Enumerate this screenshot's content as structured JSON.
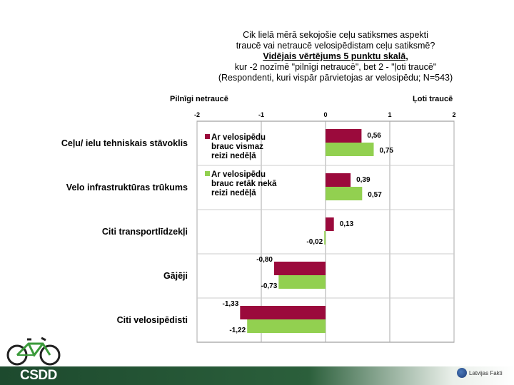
{
  "title": {
    "line1": "Cik lielā mērā sekojošie ceļu satiksmes aspekti",
    "line2": "traucē vai netraucē velosipēdistam ceļu satiksmē?",
    "line3": "Vidējais vērtējums 5 punktu skalā,",
    "line4": "kur -2 nozīmē \"pilnīgi netraucē\", bet 2 - \"ļoti traucē\"",
    "line5": "(Respondenti, kuri vispār pārvietojas ar velosipēdu; N=543)"
  },
  "scale": {
    "left_label": "Pilnīgi netraucē",
    "right_label": "Ļoti traucē"
  },
  "chart_data": {
    "type": "bar",
    "orientation": "horizontal",
    "categories": [
      "Ceļu/ ielu tehniskais stāvoklis",
      "Velo infrastruktūras trūkums",
      "Citi transportlīdzekļi",
      "Gājēji",
      "Citi velosipēdisti"
    ],
    "series": [
      {
        "name": "Ar velosipēdu brauc vismaz reizi nedēļā",
        "legend_lines": [
          "Ar velosipēdu",
          "brauc vismaz",
          "reizi nedēļā"
        ],
        "color": "#9b0a3c",
        "values": [
          0.56,
          0.39,
          0.13,
          -0.8,
          -1.33
        ],
        "labels": [
          "0,56",
          "0,39",
          "0,13",
          "-0,80",
          "-1,33"
        ]
      },
      {
        "name": "Ar velosipēdu brauc retāk nekā reizi nedēļā",
        "legend_lines": [
          "Ar velosipēdu",
          "brauc retāk nekā",
          "reizi nedēļā"
        ],
        "color": "#92d050",
        "values": [
          0.75,
          0.57,
          -0.02,
          -0.73,
          -1.22
        ],
        "labels": [
          "0,75",
          "0,57",
          "-0,02",
          "-0,73",
          "-1,22"
        ]
      }
    ],
    "xlim": [
      -2,
      2
    ],
    "xticks": [
      "-2",
      "-1",
      "0",
      "1",
      "2"
    ],
    "grid": true,
    "legend_position": "top-left"
  },
  "footer": {
    "logo_text": "CSDD",
    "partner_text": "Latvijas Fakti",
    "bike_icon": "bicycle-icon",
    "partner_icon": "latvijas-fakti-logo-icon"
  }
}
